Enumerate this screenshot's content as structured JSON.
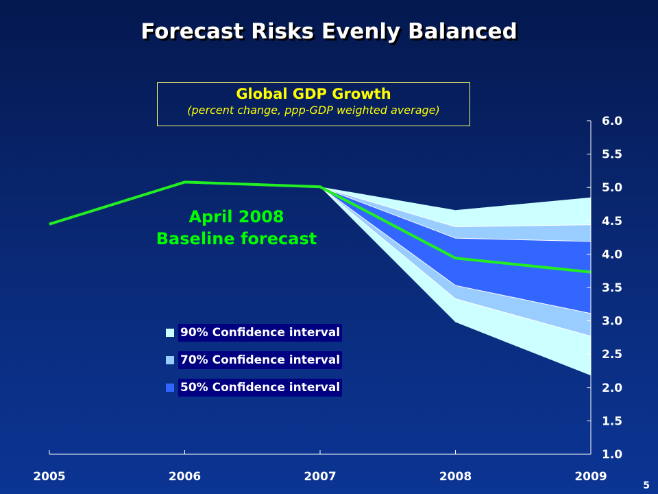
{
  "page_title": "Forecast Risks Evenly Balanced",
  "page_number": "5",
  "chart_data": {
    "type": "area",
    "title": "Global GDP Growth",
    "subtitle": "(percent change, ppp-GDP weighted average)",
    "annotation": [
      "April 2008",
      "Baseline forecast"
    ],
    "categories": [
      "2005",
      "2006",
      "2007",
      "2008",
      "2009"
    ],
    "ylim": [
      1.0,
      6.0
    ],
    "yticks": [
      "1.0",
      "1.5",
      "2.0",
      "2.5",
      "3.0",
      "3.5",
      "4.0",
      "4.5",
      "5.0",
      "5.5",
      "6.0"
    ],
    "y_axis_side": "right",
    "grid": false,
    "legend_placement": "center-left",
    "baseline": {
      "values": [
        4.45,
        5.08,
        5.01,
        3.94,
        3.73
      ],
      "color": "#22ee22"
    },
    "bands": [
      {
        "name": "90% Confidence interval",
        "color": "#ccffff",
        "lower": [
          null,
          null,
          5.01,
          2.98,
          2.18
        ],
        "upper": [
          null,
          null,
          5.01,
          4.66,
          4.85
        ]
      },
      {
        "name": "70% Confidence interval",
        "color": "#99ccff",
        "lower": [
          null,
          null,
          5.01,
          3.33,
          2.77
        ],
        "upper": [
          null,
          null,
          5.01,
          4.41,
          4.44
        ]
      },
      {
        "name": "50% Confidence interval",
        "color": "#3366ff",
        "lower": [
          null,
          null,
          5.01,
          3.53,
          3.11
        ],
        "upper": [
          null,
          null,
          5.01,
          4.24,
          4.19
        ]
      }
    ]
  }
}
